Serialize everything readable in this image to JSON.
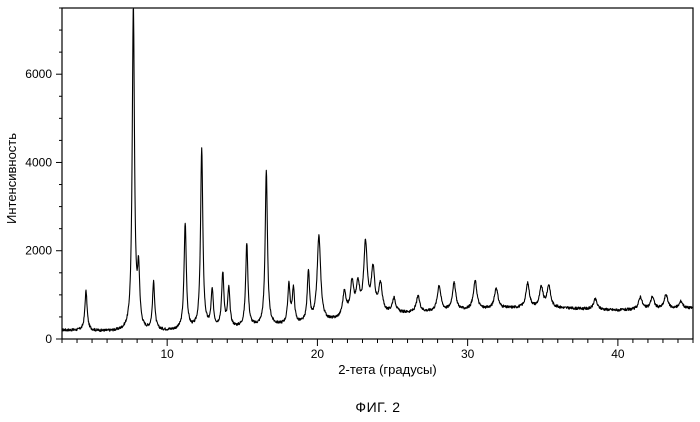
{
  "chart_data": {
    "type": "line",
    "title": "",
    "xlabel": "2-тета (градусы)",
    "ylabel": "Интенсивность",
    "xlim": [
      3,
      45
    ],
    "ylim": [
      0,
      7500
    ],
    "x_ticks": [
      10,
      20,
      30,
      40
    ],
    "y_ticks": [
      0,
      2000,
      4000,
      6000
    ],
    "x_tick_labels": [
      "10",
      "20",
      "30",
      "40"
    ],
    "y_tick_labels": [
      "0",
      "2000",
      "4000",
      "6000"
    ],
    "grid": false,
    "legend": "none",
    "line_color": "#000000",
    "baseline": [
      [
        3,
        200
      ],
      [
        6,
        170
      ],
      [
        8,
        160
      ],
      [
        10,
        180
      ],
      [
        15,
        250
      ],
      [
        20,
        350
      ],
      [
        24,
        550
      ],
      [
        27,
        600
      ],
      [
        33,
        700
      ],
      [
        36,
        700
      ],
      [
        40,
        650
      ],
      [
        45,
        700
      ]
    ],
    "peaks": [
      {
        "x": 4.6,
        "y": 1080
      },
      {
        "x": 7.75,
        "y": 7500
      },
      {
        "x": 8.1,
        "y": 1400
      },
      {
        "x": 9.1,
        "y": 1250
      },
      {
        "x": 11.2,
        "y": 2600
      },
      {
        "x": 12.3,
        "y": 4300
      },
      {
        "x": 13.0,
        "y": 1050
      },
      {
        "x": 13.7,
        "y": 1450
      },
      {
        "x": 14.1,
        "y": 1100
      },
      {
        "x": 15.3,
        "y": 2150
      },
      {
        "x": 16.6,
        "y": 3800
      },
      {
        "x": 18.1,
        "y": 1200
      },
      {
        "x": 18.4,
        "y": 1100
      },
      {
        "x": 19.4,
        "y": 1500
      },
      {
        "x": 20.1,
        "y": 2300
      },
      {
        "x": 21.8,
        "y": 1000
      },
      {
        "x": 22.3,
        "y": 1200
      },
      {
        "x": 22.7,
        "y": 1150
      },
      {
        "x": 23.2,
        "y": 2100
      },
      {
        "x": 23.7,
        "y": 1500
      },
      {
        "x": 24.2,
        "y": 1200
      },
      {
        "x": 25.1,
        "y": 900
      },
      {
        "x": 26.7,
        "y": 950
      },
      {
        "x": 28.1,
        "y": 1200
      },
      {
        "x": 29.1,
        "y": 1250
      },
      {
        "x": 30.5,
        "y": 1300
      },
      {
        "x": 31.9,
        "y": 1150
      },
      {
        "x": 34.0,
        "y": 1250
      },
      {
        "x": 34.9,
        "y": 1150
      },
      {
        "x": 35.4,
        "y": 1200
      },
      {
        "x": 38.5,
        "y": 900
      },
      {
        "x": 41.5,
        "y": 950
      },
      {
        "x": 42.3,
        "y": 950
      },
      {
        "x": 43.2,
        "y": 1000
      },
      {
        "x": 44.2,
        "y": 850
      }
    ]
  },
  "caption": "ФИГ. 2"
}
